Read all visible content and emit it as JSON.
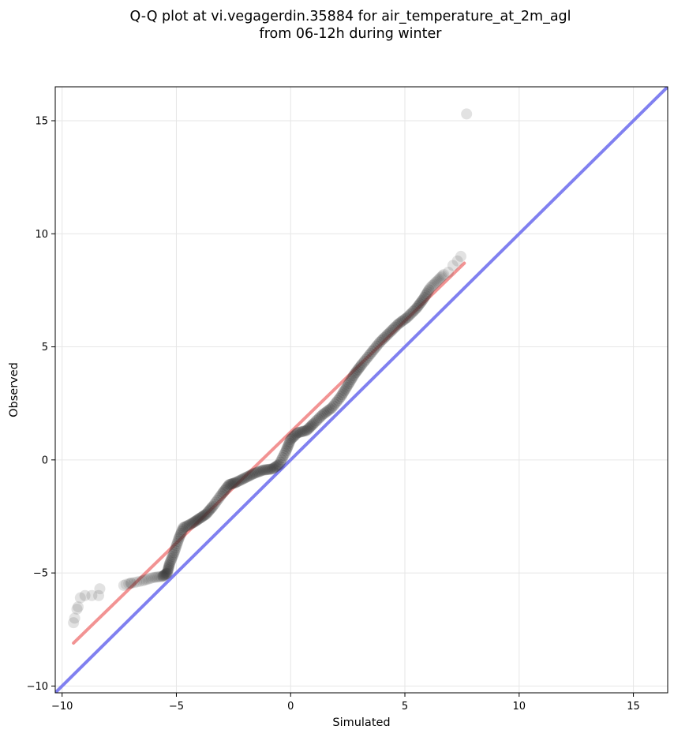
{
  "chart_data": {
    "type": "scatter",
    "title_lines": [
      "Q-Q plot at vi.vegagerdin.35884 for air_temperature_at_2m_agl",
      "from 06-12h during winter"
    ],
    "xlabel": "Simulated",
    "ylabel": "Observed",
    "xlim": [
      -10.3,
      16.5
    ],
    "ylim": [
      -10.3,
      16.5
    ],
    "x_ticks": [
      {
        "value": -10,
        "label": "−10"
      },
      {
        "value": -5,
        "label": "−5"
      },
      {
        "value": 0,
        "label": "0"
      },
      {
        "value": 5,
        "label": "5"
      },
      {
        "value": 10,
        "label": "10"
      },
      {
        "value": 15,
        "label": "15"
      }
    ],
    "y_ticks": [
      {
        "value": -10,
        "label": "−10"
      },
      {
        "value": -5,
        "label": "−5"
      },
      {
        "value": 0,
        "label": "0"
      },
      {
        "value": 5,
        "label": "5"
      },
      {
        "value": 10,
        "label": "10"
      },
      {
        "value": 15,
        "label": "15"
      }
    ],
    "grid": true,
    "colors": {
      "points": "#333333",
      "fit_line": "#f08080",
      "identity_line": "#8080f0",
      "grid": "#e6e6e6"
    },
    "identity_line": {
      "x": [
        -10.3,
        16.5
      ],
      "y": [
        -10.3,
        16.5
      ]
    },
    "fit_line": {
      "x": [
        -9.5,
        7.6
      ],
      "y": [
        -8.1,
        8.7
      ]
    },
    "quantile_curve": {
      "x": [
        -7.2,
        -6.5,
        -6.0,
        -5.6,
        -5.4,
        -5.3,
        -5.1,
        -4.9,
        -4.7,
        -4.3,
        -4.0,
        -3.7,
        -3.4,
        -3.0,
        -2.7,
        -2.4,
        -2.0,
        -1.6,
        -1.2,
        -0.8,
        -0.5,
        -0.2,
        0.0,
        0.3,
        0.7,
        1.0,
        1.4,
        1.8,
        2.2,
        2.5,
        2.8,
        3.1,
        3.5,
        3.9,
        4.3,
        4.7,
        5.1,
        5.5,
        5.8,
        6.1,
        6.4,
        6.7
      ],
      "y": [
        -5.5,
        -5.35,
        -5.2,
        -5.15,
        -5.0,
        -4.6,
        -4.1,
        -3.5,
        -3.0,
        -2.8,
        -2.6,
        -2.4,
        -2.05,
        -1.5,
        -1.1,
        -1.0,
        -0.8,
        -0.6,
        -0.45,
        -0.4,
        -0.2,
        0.4,
        0.9,
        1.2,
        1.3,
        1.6,
        2.0,
        2.3,
        2.8,
        3.3,
        3.8,
        4.2,
        4.7,
        5.2,
        5.6,
        6.0,
        6.3,
        6.7,
        7.1,
        7.6,
        7.9,
        8.2
      ]
    },
    "points_per_segment": 6,
    "outliers": [
      {
        "x": -9.5,
        "y": -7.2
      },
      {
        "x": -9.45,
        "y": -7.0
      },
      {
        "x": -9.35,
        "y": -6.6
      },
      {
        "x": -9.3,
        "y": -6.5
      },
      {
        "x": -9.2,
        "y": -6.1
      },
      {
        "x": -9.0,
        "y": -6.0
      },
      {
        "x": -8.7,
        "y": -6.0
      },
      {
        "x": -8.4,
        "y": -6.0
      },
      {
        "x": -8.35,
        "y": -5.7
      },
      {
        "x": -7.3,
        "y": -5.55
      },
      {
        "x": -7.0,
        "y": -5.45
      },
      {
        "x": 6.9,
        "y": 8.3
      },
      {
        "x": 7.1,
        "y": 8.6
      },
      {
        "x": 7.3,
        "y": 8.8
      },
      {
        "x": 7.45,
        "y": 9.0
      },
      {
        "x": 7.7,
        "y": 15.3
      }
    ]
  }
}
